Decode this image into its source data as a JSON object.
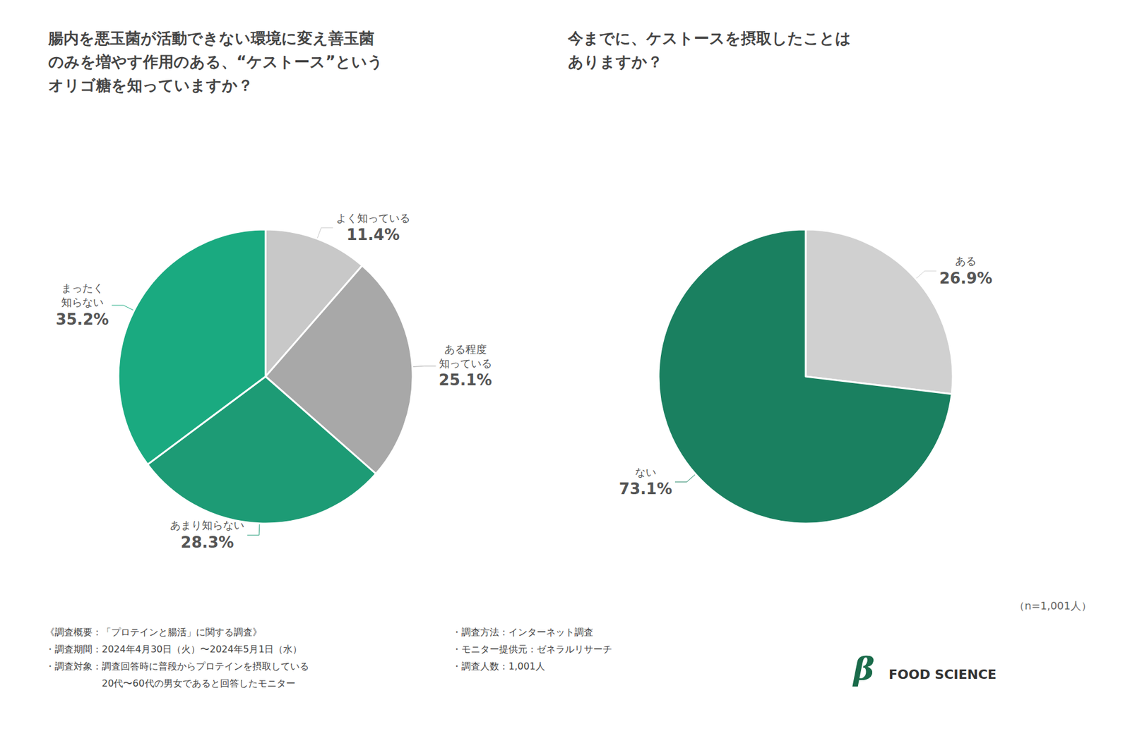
{
  "chart_data": [
    {
      "type": "pie",
      "title": "腸内を悪玉菌が活動できない環境に変え善玉菌\nのみを増やす作用のある、“ケストース”という\nオリゴ糖を知っていますか？",
      "categories": [
        "よく知っている",
        "ある程度\n知っている",
        "あまり知らない",
        "まったく\n知らない"
      ],
      "values": [
        11.4,
        25.1,
        28.3,
        35.2
      ],
      "value_labels": [
        "11.4%",
        "25.1%",
        "28.3%",
        "35.2%"
      ],
      "colors": [
        "#c8c8c8",
        "#a8a8a8",
        "#1d9b75",
        "#1aaa80"
      ],
      "data_labels": true,
      "annotations": [
        "《調査概要：「プロテインと腸活」に関する調査》\n・調査期間：2024年4月30日（火）〜2024年5月1日（水）\n・調査対象：調査回答時に普段からプロテインを摂取している\n　　　　　　20代〜60代の男女であると回答したモニター",
        "・調査方法：インターネット調査\n・モニター提供元：ゼネラルリサーチ\n・調査人数：1,001人"
      ]
    },
    {
      "type": "pie",
      "title": "今までに、ケストースを摂取したことは\nありますか？",
      "categories": [
        "ある",
        "ない"
      ],
      "values": [
        26.9,
        73.1
      ],
      "value_labels": [
        "26.9%",
        "73.1%"
      ],
      "colors": [
        "#d0d0d0",
        "#1a8060"
      ],
      "data_labels": true,
      "annotations": [
        "（n=1,001人）",
        "β",
        "FOOD SCIENCE"
      ]
    }
  ]
}
